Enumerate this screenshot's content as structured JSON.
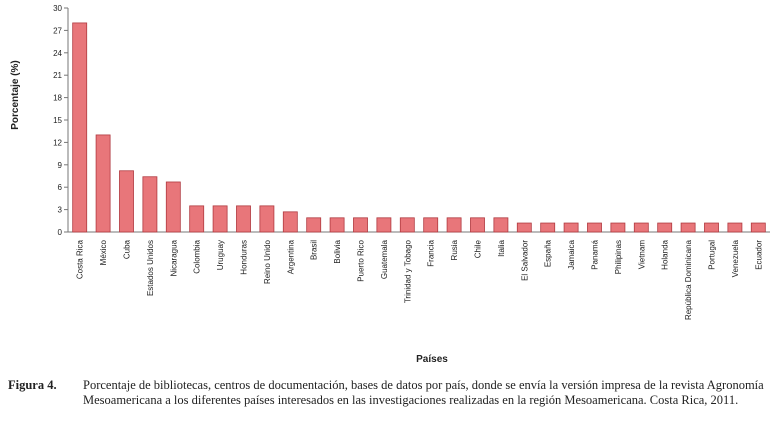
{
  "chart_data": {
    "type": "bar",
    "y_label": "Porcentaje (%)",
    "x_label": "Países",
    "categories": [
      "Costa Rica",
      "México",
      "Cuba",
      "Estados Unidos",
      "Nicaragua",
      "Colombia",
      "Uruguay",
      "Honduras",
      "Reino Unido",
      "Argentina",
      "Brasil",
      "Bolivia",
      "Puerto Rico",
      "Guatemala",
      "Trinidad y Tobago",
      "Francia",
      "Rusia",
      "Chile",
      "Italia",
      "El Salvador",
      "España",
      "Jamaica",
      "Panamá",
      "Philipinas",
      "Vietnam",
      "Holanda",
      "República Dominicana",
      "Portugal",
      "Venezuela",
      "Ecuador"
    ],
    "values": [
      28,
      13,
      8.2,
      7.4,
      6.7,
      3.5,
      3.5,
      3.5,
      3.5,
      2.7,
      1.9,
      1.9,
      1.9,
      1.9,
      1.9,
      1.9,
      1.9,
      1.9,
      1.9,
      1.2,
      1.2,
      1.2,
      1.2,
      1.2,
      1.2,
      1.2,
      1.2,
      1.2,
      1.2,
      1.2
    ],
    "color": "#e8767a",
    "ylim": [
      0,
      30
    ],
    "yticks": [
      0,
      3,
      6,
      9,
      12,
      15,
      18,
      21,
      24,
      27,
      30
    ],
    "grid": false
  },
  "caption": {
    "label": "Figura 4.",
    "text": "Porcentaje de bibliotecas, centros de documentación, bases de datos por país, donde se envía la versión impresa de la revista Agronomía Mesoamericana a los diferentes países interesados en las investigaciones realizadas en la región Mesoamericana. Costa Rica, 2011."
  }
}
